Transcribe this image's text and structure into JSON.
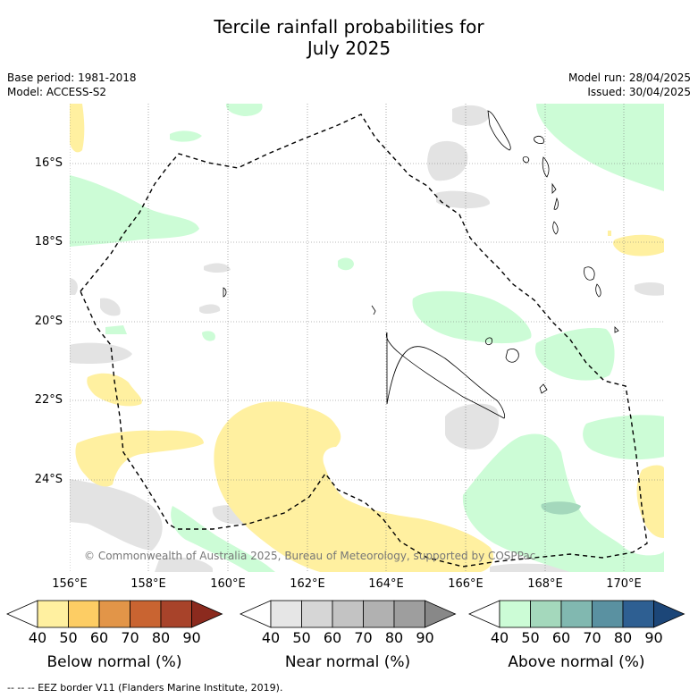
{
  "title_line1": "Tercile rainfall probabilities for",
  "title_line2": "July 2025",
  "base_period": "Base period: 1981-2018",
  "model": "Model: ACCESS-S2",
  "model_run": "Model run: 28/04/2025",
  "issued": "Issued: 30/04/2025",
  "copyright": "© Commonwealth of Australia 2025, Bureau of Meteorology, supported by COSPPac",
  "lat_labels": [
    "16°S",
    "18°S",
    "20°S",
    "22°S",
    "24°S"
  ],
  "lon_labels": [
    "156°E",
    "158°E",
    "160°E",
    "162°E",
    "164°E",
    "166°E",
    "168°E",
    "170°E"
  ],
  "colorbars": [
    {
      "title": "Below normal (%)",
      "ticks": [
        "40",
        "50",
        "60",
        "70",
        "80",
        "90"
      ],
      "colors": [
        "#ffffff",
        "#fff0a0",
        "#fdcd64",
        "#e29548",
        "#c96431",
        "#a8432a",
        "#8b2a1e"
      ]
    },
    {
      "title": "Near normal (%)",
      "ticks": [
        "40",
        "50",
        "60",
        "70",
        "80",
        "90"
      ],
      "colors": [
        "#ffffff",
        "#e6e6e6",
        "#d6d6d6",
        "#c3c3c3",
        "#b1b1b1",
        "#9e9e9e",
        "#888888"
      ]
    },
    {
      "title": "Above normal (%)",
      "ticks": [
        "40",
        "50",
        "60",
        "70",
        "80",
        "90"
      ],
      "colors": [
        "#ffffff",
        "#ccfcd6",
        "#a4d8bc",
        "#81b8b0",
        "#5a91a1",
        "#2e5f92",
        "#1c4678"
      ]
    }
  ],
  "eez_note": "--  --  -- EEZ border V11 (Flanders Marine Institute, 2019)."
}
